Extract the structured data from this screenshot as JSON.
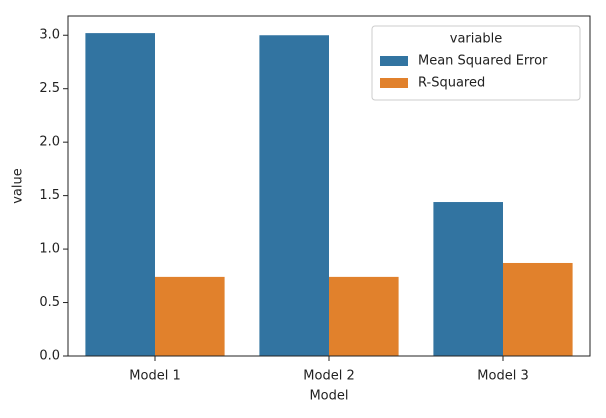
{
  "chart_data": {
    "type": "bar",
    "x_label": "Model",
    "y_label": "value",
    "legend_title": "variable",
    "categories": [
      "Model 1",
      "Model 2",
      "Model 3"
    ],
    "series": [
      {
        "name": "Mean Squared Error",
        "color": "#3274a1",
        "values": [
          3.02,
          3.0,
          1.44
        ]
      },
      {
        "name": "R-Squared",
        "color": "#e1812c",
        "values": [
          0.74,
          0.74,
          0.87
        ]
      }
    ],
    "ylim": [
      0,
      3.18
    ],
    "yticks": [
      {
        "value": 0,
        "label": "0.0"
      },
      0.5,
      {
        "value": 1,
        "label": "1.0"
      },
      1.5,
      {
        "value": 2,
        "label": "2.0"
      },
      2.5,
      {
        "value": 3,
        "label": "3.0"
      }
    ],
    "legend_position": "upper right",
    "grid": false
  }
}
